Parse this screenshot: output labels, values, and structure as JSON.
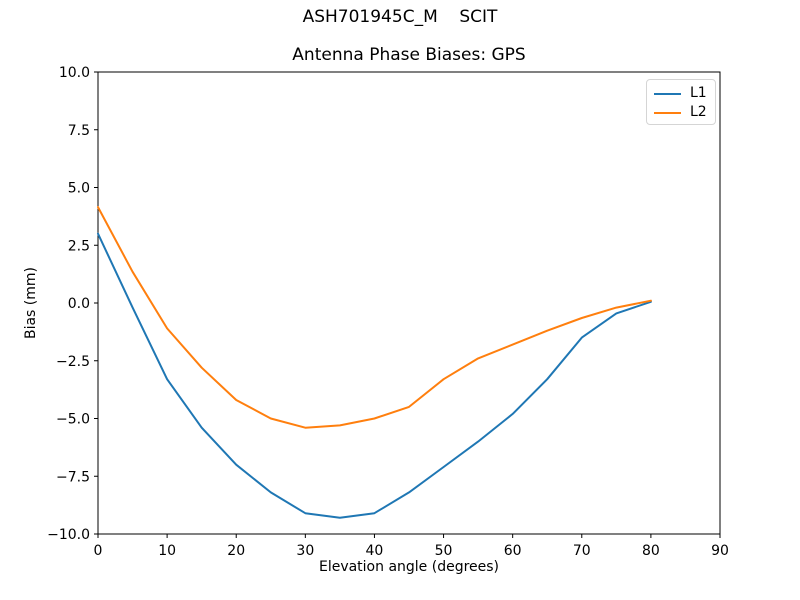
{
  "figure": {
    "suptitle": "ASH701945C_M    SCIT",
    "title": "Antenna Phase Biases: GPS"
  },
  "chart_data": {
    "type": "line",
    "suptitle": "ASH701945C_M    SCIT",
    "title": "Antenna Phase Biases: GPS",
    "xlabel": "Elevation angle (degrees)",
    "ylabel": "Bias (mm)",
    "xlim": [
      0,
      90
    ],
    "ylim": [
      -10,
      10
    ],
    "xticks": [
      0,
      10,
      20,
      30,
      40,
      50,
      60,
      70,
      80,
      90
    ],
    "yticks": [
      -10,
      -7.5,
      -5,
      -2.5,
      0,
      2.5,
      5,
      7.5,
      10
    ],
    "grid": false,
    "legend_position": "upper right",
    "x": [
      0,
      5,
      10,
      15,
      20,
      25,
      30,
      35,
      40,
      45,
      50,
      55,
      60,
      65,
      70,
      75,
      80
    ],
    "series": [
      {
        "name": "L1",
        "color": "#1f77b4",
        "values": [
          3.0,
          -0.2,
          -3.3,
          -5.4,
          -7.0,
          -8.2,
          -9.1,
          -9.3,
          -9.1,
          -8.2,
          -7.1,
          -6.0,
          -4.8,
          -3.3,
          -1.5,
          -0.45,
          0.05
        ]
      },
      {
        "name": "L2",
        "color": "#ff7f0e",
        "values": [
          4.15,
          1.35,
          -1.1,
          -2.8,
          -4.2,
          -5.0,
          -5.4,
          -5.3,
          -5.0,
          -4.5,
          -3.3,
          -2.4,
          -1.8,
          -1.2,
          -0.65,
          -0.2,
          0.1
        ]
      }
    ]
  }
}
